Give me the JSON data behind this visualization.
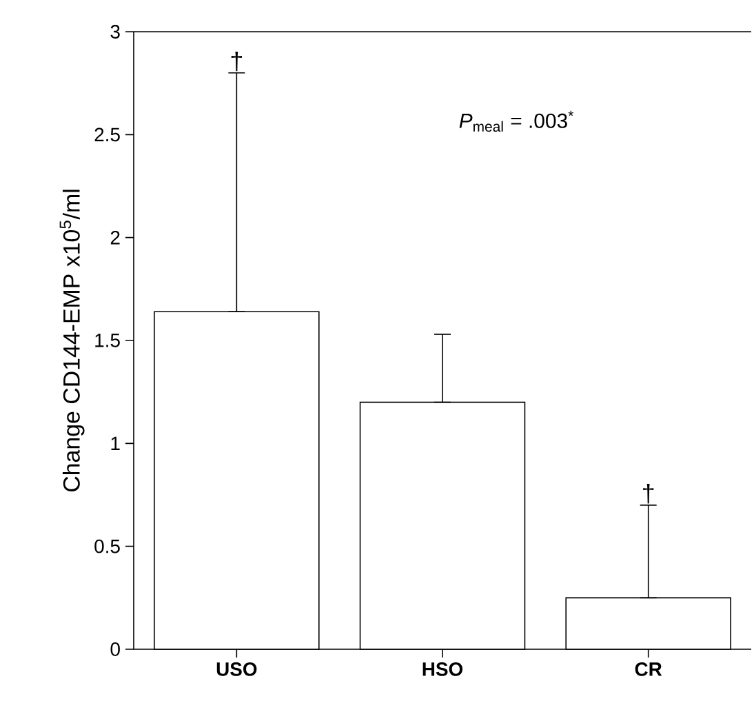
{
  "chart_data": {
    "type": "bar",
    "ylabel": "Change CD144-EMP x10$^{5}$/ml",
    "categories": [
      "USO",
      "HSO",
      "CR"
    ],
    "values": [
      1.64,
      1.2,
      0.25
    ],
    "errors": [
      [
        1.64,
        2.8
      ],
      [
        1.2,
        1.53
      ],
      [
        0.25,
        0.7
      ]
    ],
    "color": "#ffffff",
    "ylim": [
      0,
      3
    ],
    "yticks": [
      0,
      0.5,
      1,
      1.5,
      2,
      2.5,
      3
    ],
    "annotations": [
      "*P*$_{meal}$ = .003$^{*}$",
      {
        "text": "†",
        "x": "USO",
        "y": 2.8
      },
      {
        "text": "†",
        "x": "CR",
        "y": 0.7
      }
    ]
  }
}
